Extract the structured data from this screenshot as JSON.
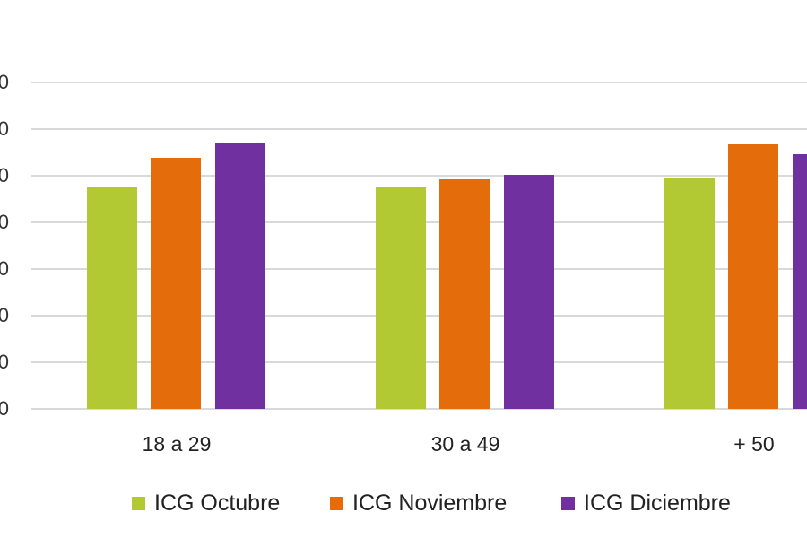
{
  "chart_data": {
    "type": "bar",
    "title": "",
    "xlabel": "",
    "ylabel": "",
    "categories": [
      "18 a 29",
      "30 a 49",
      "+ 50"
    ],
    "series": [
      {
        "name": "ICG Octubre",
        "color": "#b2c934",
        "values": [
          47.5,
          47.5,
          49.4
        ]
      },
      {
        "name": "ICG Noviembre",
        "color": "#e46c0a",
        "values": [
          53.8,
          49.2,
          56.7
        ]
      },
      {
        "name": "ICG Diciembre",
        "color": "#7030a0",
        "values": [
          57.1,
          50.2,
          54.6
        ]
      }
    ],
    "ylim": [
      0,
      70
    ],
    "yticks_note": "y-axis tick labels cropped at left edge; only trailing '0' glyphs visible",
    "ytick_labels": [
      "0",
      "0",
      "0",
      "0",
      "0",
      "0",
      "0",
      "0"
    ],
    "grid": true,
    "legend_position": "bottom"
  },
  "legend": {
    "items": [
      {
        "label": "ICG Octubre"
      },
      {
        "label": "ICG Noviembre"
      },
      {
        "label": "ICG Diciembre"
      }
    ]
  }
}
